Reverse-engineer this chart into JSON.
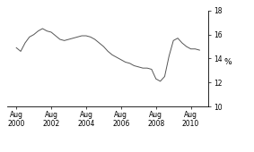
{
  "ylabel": "%",
  "xlim": [
    1999.5,
    2011.0
  ],
  "ylim": [
    10,
    18
  ],
  "yticks": [
    10,
    12,
    14,
    16,
    18
  ],
  "xtick_labels": [
    "Aug\n2000",
    "Aug\n2002",
    "Aug\n2004",
    "Aug\n2006",
    "Aug\n2008",
    "Aug\n2010"
  ],
  "xtick_positions": [
    2000,
    2002,
    2004,
    2006,
    2008,
    2010
  ],
  "line_color": "#555555",
  "background_color": "#ffffff",
  "x": [
    2000.0,
    2000.25,
    2000.5,
    2000.75,
    2001.0,
    2001.25,
    2001.5,
    2001.75,
    2002.0,
    2002.25,
    2002.5,
    2002.75,
    2003.0,
    2003.25,
    2003.5,
    2003.75,
    2004.0,
    2004.25,
    2004.5,
    2004.75,
    2005.0,
    2005.25,
    2005.5,
    2005.75,
    2006.0,
    2006.25,
    2006.5,
    2006.75,
    2007.0,
    2007.25,
    2007.5,
    2007.75,
    2008.0,
    2008.25,
    2008.5,
    2008.75,
    2009.0,
    2009.25,
    2009.5,
    2009.75,
    2010.0,
    2010.25,
    2010.5
  ],
  "y": [
    14.9,
    14.6,
    15.3,
    15.8,
    16.0,
    16.3,
    16.5,
    16.3,
    16.2,
    15.9,
    15.6,
    15.5,
    15.6,
    15.7,
    15.8,
    15.9,
    15.9,
    15.8,
    15.6,
    15.3,
    15.0,
    14.6,
    14.3,
    14.1,
    13.9,
    13.7,
    13.6,
    13.4,
    13.3,
    13.2,
    13.2,
    13.1,
    12.3,
    12.1,
    12.5,
    14.2,
    15.5,
    15.7,
    15.3,
    15.0,
    14.8,
    14.8,
    14.7
  ]
}
